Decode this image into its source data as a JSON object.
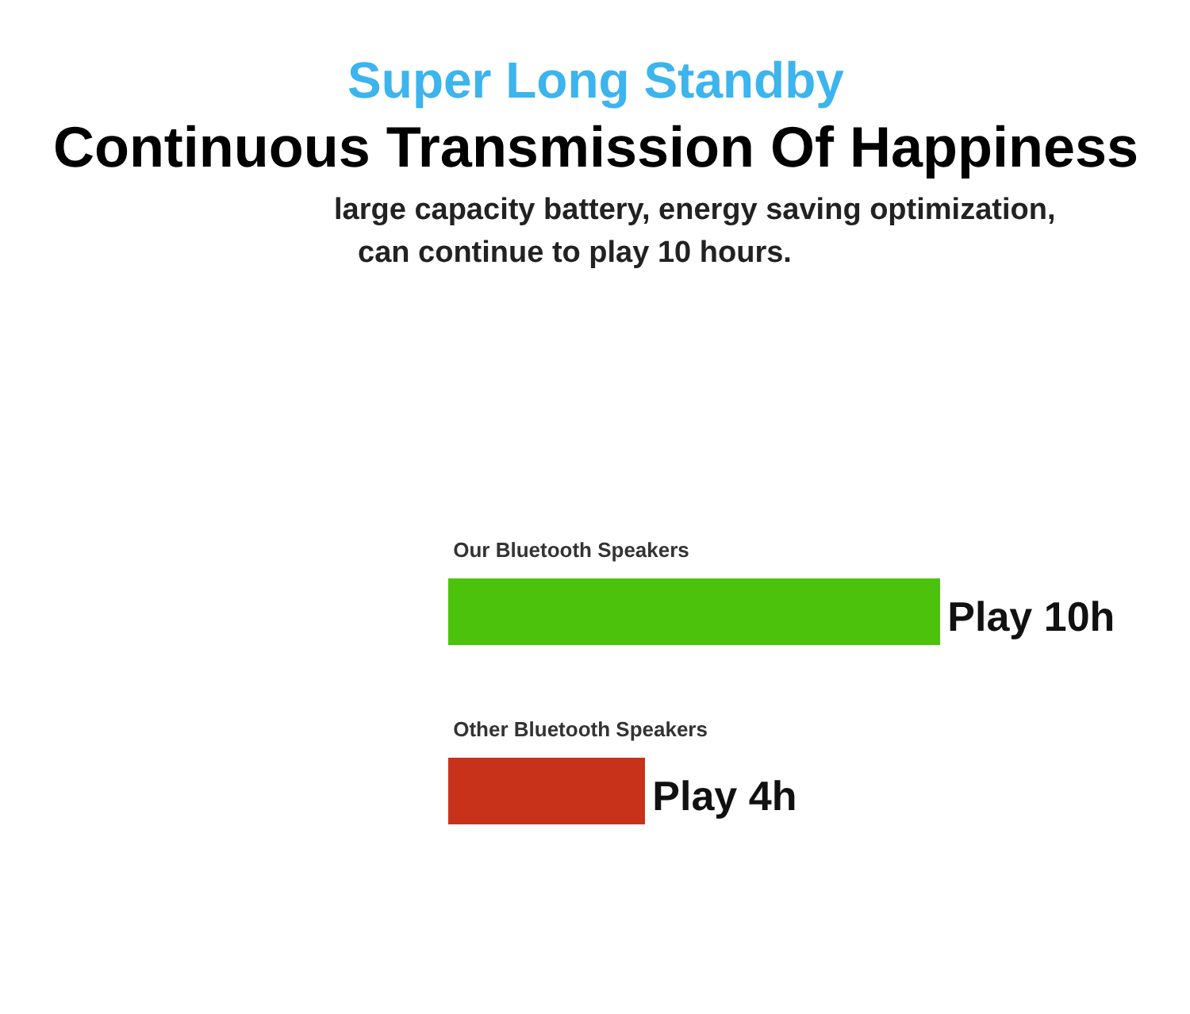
{
  "chart_data": {
    "type": "bar",
    "orientation": "horizontal",
    "title": "Super Long Standby",
    "subtitle": "Continuous Transmission Of Happiness",
    "annotations": [
      "large capacity battery, energy saving optimization,",
      "can continue to play 10 hours."
    ],
    "categories": [
      "Our Bluetooth Speakers",
      "Other Bluetooth Speakers"
    ],
    "values": [
      10,
      4
    ],
    "colors": [
      "#4cc20c",
      "#c8321a"
    ],
    "value_labels": [
      "Play 10h",
      "Play 4h"
    ]
  }
}
